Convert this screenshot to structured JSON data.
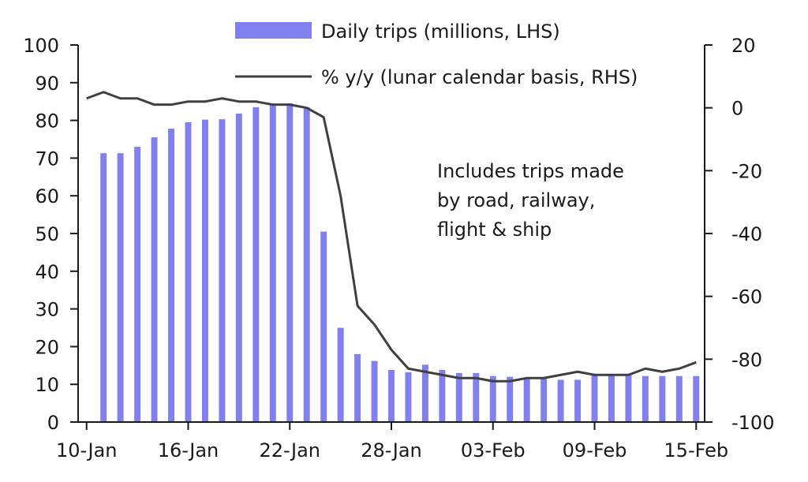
{
  "chart_data": {
    "type": "bar",
    "title": "",
    "x_tick_labels": [
      "10-Jan",
      "16-Jan",
      "22-Jan",
      "28-Jan",
      "03-Feb",
      "09-Feb",
      "15-Feb"
    ],
    "x_tick_positions": [
      "10-Jan",
      "16-Jan",
      "22-Jan",
      "28-Jan",
      "03-Feb",
      "09-Feb",
      "15-Feb"
    ],
    "x": [
      "10-Jan",
      "11-Jan",
      "12-Jan",
      "13-Jan",
      "14-Jan",
      "15-Jan",
      "16-Jan",
      "17-Jan",
      "18-Jan",
      "19-Jan",
      "20-Jan",
      "21-Jan",
      "22-Jan",
      "23-Jan",
      "24-Jan",
      "25-Jan",
      "26-Jan",
      "27-Jan",
      "28-Jan",
      "29-Jan",
      "30-Jan",
      "31-Jan",
      "01-Feb",
      "02-Feb",
      "03-Feb",
      "04-Feb",
      "05-Feb",
      "06-Feb",
      "07-Feb",
      "08-Feb",
      "09-Feb",
      "10-Feb",
      "11-Feb",
      "12-Feb",
      "13-Feb",
      "14-Feb",
      "15-Feb"
    ],
    "left_axis": {
      "ylim": [
        0,
        100
      ],
      "ticks": [
        "0",
        "10",
        "20",
        "30",
        "40",
        "50",
        "60",
        "70",
        "80",
        "90",
        "100"
      ]
    },
    "right_axis": {
      "ylim": [
        -100,
        20
      ],
      "ticks": [
        "-100",
        "-80",
        "-60",
        "-40",
        "-20",
        "0",
        "20"
      ]
    },
    "series": [
      {
        "name": "Daily trips (millions, LHS)",
        "type": "bar",
        "axis": "left",
        "color": "#8080f0",
        "values": [
          null,
          71.3,
          71.3,
          73,
          75.5,
          77.8,
          79.5,
          80.2,
          80.3,
          81.8,
          83.5,
          84.3,
          84.5,
          83.5,
          50.5,
          25,
          18,
          16.2,
          13.8,
          13.2,
          15.2,
          13.8,
          13,
          13,
          12.2,
          12,
          11.8,
          11.8,
          11.2,
          11.2,
          12.5,
          12.3,
          12.5,
          12.2,
          12.2,
          12.2,
          12.2
        ]
      },
      {
        "name": "% y/y (lunar calendar basis, RHS)",
        "type": "line",
        "axis": "right",
        "color": "#404040",
        "values": [
          3,
          5,
          3,
          3,
          1,
          1,
          2,
          2,
          3,
          2,
          2,
          1,
          1,
          0,
          -3,
          -28,
          -63,
          -69,
          -77,
          -83,
          -84,
          -85,
          -86,
          -86,
          -87,
          -87,
          -86,
          -86,
          -85,
          -84,
          -85,
          -85,
          -85,
          -83,
          -84,
          -83,
          -81
        ]
      }
    ],
    "annotation": [
      "Includes trips made",
      "by road, railway,",
      "flight & ship"
    ],
    "legend": "top-center",
    "grid": false
  }
}
